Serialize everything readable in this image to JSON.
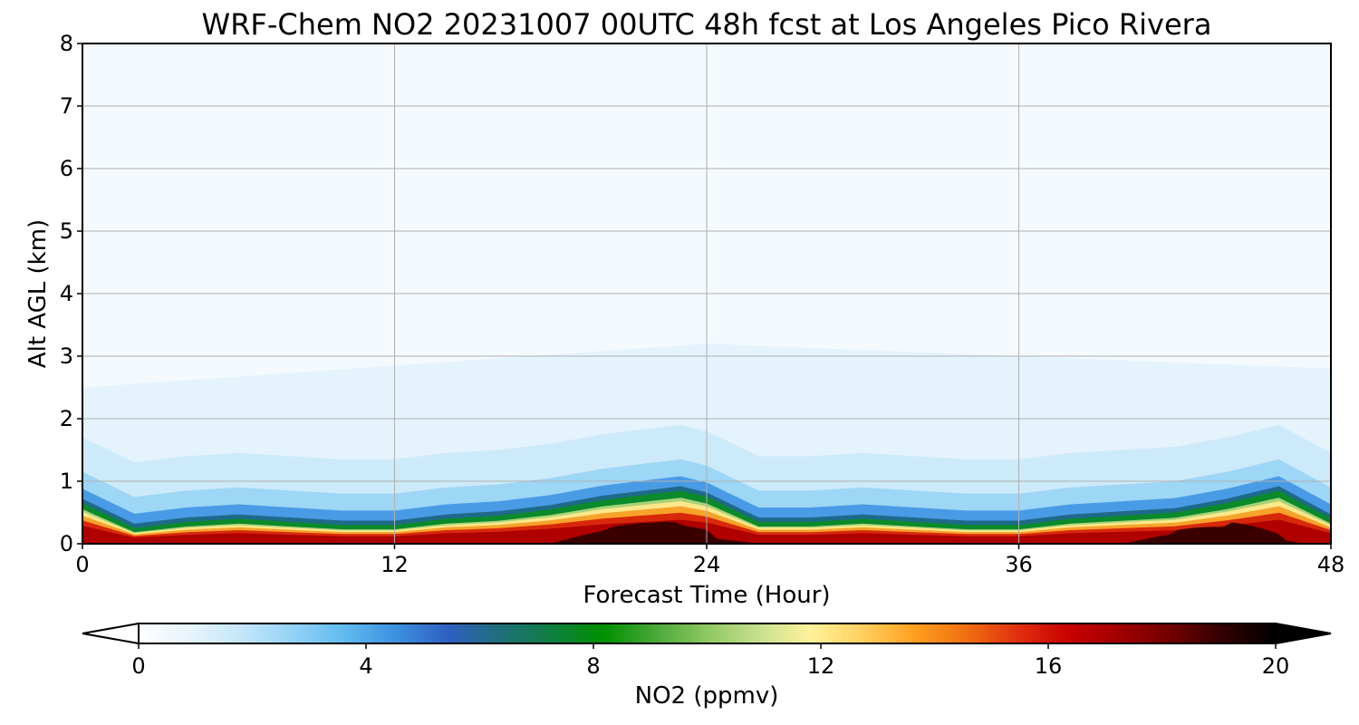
{
  "chart_data": {
    "type": "heatmap",
    "title": "WRF-Chem NO2  20231007 00UTC 48h fcst at Los Angeles Pico Rivera",
    "xlabel": "Forecast Time (Hour)",
    "ylabel": "Alt AGL (km)",
    "xlim": [
      0,
      48
    ],
    "ylim": [
      0,
      8
    ],
    "x_ticks": [
      "0",
      "12",
      "24",
      "36",
      "48"
    ],
    "y_ticks": [
      "0",
      "1",
      "2",
      "3",
      "4",
      "5",
      "6",
      "7",
      "8"
    ],
    "grid": true,
    "colorbar": {
      "label": "NO2  (ppmv)",
      "range": [
        0,
        20
      ],
      "ticks": [
        "0",
        "4",
        "8",
        "12",
        "16",
        "20"
      ],
      "extend": "both",
      "colors": [
        "#ffffff",
        "#e6f4fc",
        "#c4e6fa",
        "#93d2f6",
        "#5fbaf0",
        "#3c8fe0",
        "#2f5fc0",
        "#1f6f7a",
        "#0f7f3f",
        "#009000",
        "#4aa83a",
        "#8fc860",
        "#c8e090",
        "#fff29a",
        "#ffd060",
        "#ffa020",
        "#f07010",
        "#e03010",
        "#c80000",
        "#a00000",
        "#700000",
        "#300000",
        "#000000"
      ]
    },
    "x": [
      0,
      2,
      4,
      6,
      8,
      10,
      12,
      14,
      16,
      18,
      20,
      22,
      23,
      24,
      26,
      28,
      30,
      32,
      34,
      36,
      38,
      40,
      42,
      44,
      46,
      48
    ],
    "pbl_top_km": [
      0.6,
      0.2,
      0.3,
      0.35,
      0.3,
      0.25,
      0.25,
      0.35,
      0.4,
      0.5,
      0.65,
      0.75,
      0.8,
      0.7,
      0.3,
      0.3,
      0.35,
      0.3,
      0.25,
      0.25,
      0.35,
      0.4,
      0.45,
      0.6,
      0.8,
      0.35
    ],
    "high_no2_core_hours": [
      [
        18,
        26
      ],
      [
        40,
        47
      ]
    ],
    "upper_plume_km": [
      [
        0,
        2.5
      ],
      [
        24,
        3.2
      ],
      [
        48,
        2.8
      ]
    ]
  }
}
